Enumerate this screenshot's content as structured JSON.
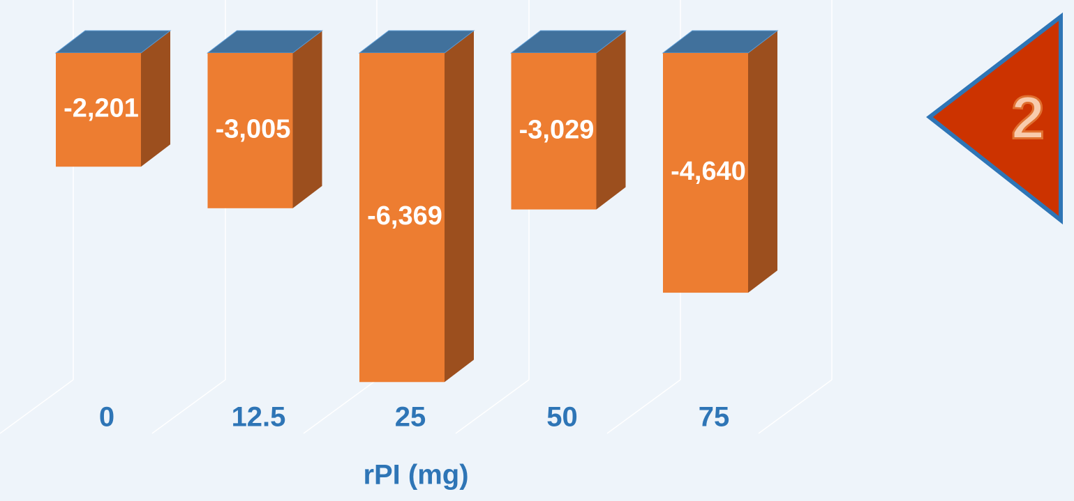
{
  "chart_data": {
    "type": "bar3d",
    "categories": [
      "0",
      "12.5",
      "25",
      "50",
      "75"
    ],
    "values": [
      -2201,
      -3005,
      -6369,
      -3029,
      -4640
    ],
    "value_labels": [
      "-2,201",
      "-3,005",
      "-6,369",
      "-3,029",
      "-4,640"
    ],
    "x_label": "rPI (mg)",
    "ylim": [
      -6500,
      0
    ],
    "color": "#ed7d31",
    "badge": "2"
  }
}
